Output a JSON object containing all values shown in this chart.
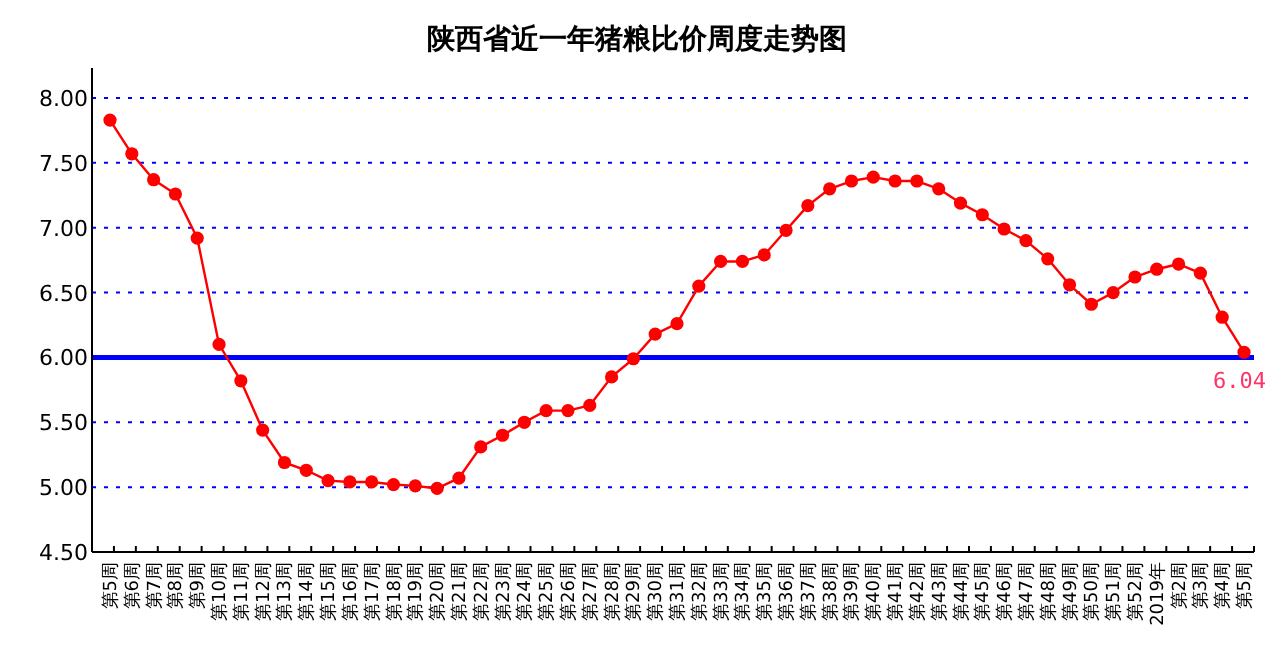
{
  "chart_data": {
    "type": "line",
    "title": "陕西省近一年猪粮比价周度走势图",
    "categories": [
      "第5周",
      "第6周",
      "第7周",
      "第8周",
      "第9周",
      "第10周",
      "第11周",
      "第12周",
      "第13周",
      "第14周",
      "第15周",
      "第16周",
      "第17周",
      "第18周",
      "第19周",
      "第20周",
      "第21周",
      "第22周",
      "第23周",
      "第24周",
      "第25周",
      "第26周",
      "第27周",
      "第28周",
      "第29周",
      "第30周",
      "第31周",
      "第32周",
      "第33周",
      "第34周",
      "第35周",
      "第36周",
      "第37周",
      "第38周",
      "第39周",
      "第40周",
      "第41周",
      "第42周",
      "第43周",
      "第44周",
      "第45周",
      "第46周",
      "第47周",
      "第48周",
      "第49周",
      "第50周",
      "第51周",
      "第52周",
      "2019年",
      "第2周",
      "第3周",
      "第4周",
      "第5周"
    ],
    "series": [
      {
        "color": "#ff0000",
        "values": [
          7.83,
          7.57,
          7.37,
          7.26,
          6.92,
          6.1,
          5.82,
          5.44,
          5.19,
          5.13,
          5.05,
          5.04,
          5.04,
          5.02,
          5.01,
          4.99,
          5.07,
          5.31,
          5.4,
          5.5,
          5.59,
          5.59,
          5.63,
          5.85,
          5.99,
          6.18,
          6.26,
          6.55,
          6.74,
          6.74,
          6.79,
          6.98,
          7.17,
          7.3,
          7.36,
          7.39,
          7.36,
          7.36,
          7.3,
          7.19,
          7.1,
          6.99,
          6.9,
          6.76,
          6.56,
          6.41,
          6.5,
          6.62,
          6.68,
          6.72,
          6.65,
          6.31,
          6.04
        ],
        "value_labels": [
          null,
          null,
          null,
          null,
          null,
          null,
          null,
          null,
          null,
          null,
          null,
          null,
          null,
          null,
          null,
          null,
          null,
          null,
          null,
          null,
          null,
          null,
          null,
          null,
          null,
          null,
          null,
          null,
          null,
          null,
          null,
          null,
          null,
          null,
          null,
          null,
          null,
          null,
          null,
          null,
          null,
          null,
          null,
          null,
          null,
          null,
          null,
          null,
          null,
          null,
          null,
          null,
          "6.04"
        ]
      }
    ],
    "ylim": [
      4.5,
      8.0
    ],
    "yticks": [
      {
        "value": 4.5,
        "label": "4.50"
      },
      {
        "value": 5.0,
        "label": "5.00"
      },
      {
        "value": 5.5,
        "label": "5.50"
      },
      {
        "value": 6.0,
        "label": "6.00"
      },
      {
        "value": 6.5,
        "label": "6.50"
      },
      {
        "value": 7.0,
        "label": "7.00"
      },
      {
        "value": 7.5,
        "label": "7.50"
      },
      {
        "value": 8.0,
        "label": "8.00"
      }
    ],
    "grid": "y",
    "marker": "circle",
    "line_style": "solid",
    "ref_lines": [
      {
        "axis": "y",
        "value": 6.0,
        "color": "#0000ff",
        "line_style": "solid"
      }
    ]
  }
}
